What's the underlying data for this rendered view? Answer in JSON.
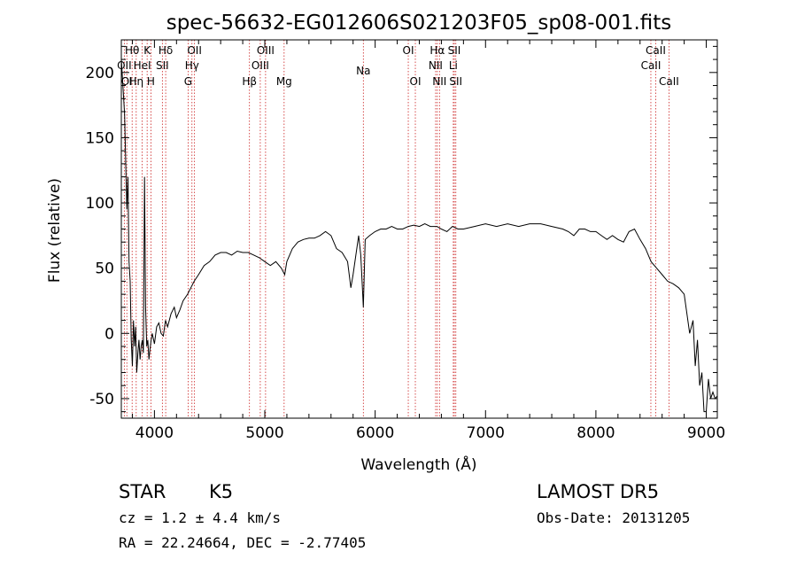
{
  "chart_data": {
    "type": "line",
    "title": "spec-56632-EG012606S021203F05_sp08-001.fits",
    "xlabel": "Wavelength (Å)",
    "ylabel": "Flux (relative)",
    "xlim": [
      3700,
      9100
    ],
    "ylim": [
      -65,
      225
    ],
    "xticks": [
      4000,
      5000,
      6000,
      7000,
      8000,
      9000
    ],
    "yticks": [
      -50,
      0,
      50,
      100,
      150,
      200
    ],
    "grid": false,
    "line_color": "#000000",
    "marker_color": "#cc2222",
    "spectral_lines": [
      {
        "label": "Hθ",
        "x": 3798,
        "row": 0
      },
      {
        "label": "K",
        "x": 3934,
        "row": 0
      },
      {
        "label": "Hδ",
        "x": 4102,
        "row": 0
      },
      {
        "label": "OII",
        "x": 4363,
        "row": 0
      },
      {
        "label": "OIII",
        "x": 5007,
        "row": 0
      },
      {
        "label": "OI",
        "x": 6300,
        "row": 0
      },
      {
        "label": "Hα",
        "x": 6563,
        "row": 0
      },
      {
        "label": "SII",
        "x": 6717,
        "row": 0
      },
      {
        "label": "CaII",
        "x": 8542,
        "row": 0
      },
      {
        "label": "OII",
        "x": 3727,
        "row": 1
      },
      {
        "label": "HeI",
        "x": 3889,
        "row": 1
      },
      {
        "label": "SII",
        "x": 4072,
        "row": 1
      },
      {
        "label": "Hγ",
        "x": 4340,
        "row": 1
      },
      {
        "label": "OIII",
        "x": 4959,
        "row": 1
      },
      {
        "label": "NII",
        "x": 6548,
        "row": 1
      },
      {
        "label": "Li",
        "x": 6708,
        "row": 1
      },
      {
        "label": "CaII",
        "x": 8498,
        "row": 1
      },
      {
        "label": "OI",
        "x": 3750,
        "row": 2
      },
      {
        "label": "Hη",
        "x": 3835,
        "row": 2
      },
      {
        "label": "H",
        "x": 3968,
        "row": 2
      },
      {
        "label": "G",
        "x": 4305,
        "row": 2
      },
      {
        "label": "Hβ",
        "x": 4861,
        "row": 2
      },
      {
        "label": "Mg",
        "x": 5175,
        "row": 2
      },
      {
        "label": "Na",
        "x": 5893,
        "row": 0.65
      },
      {
        "label": "OI",
        "x": 6364,
        "row": 2
      },
      {
        "label": "NII",
        "x": 6583,
        "row": 2
      },
      {
        "label": "SII",
        "x": 6731,
        "row": 2
      },
      {
        "label": "CaII",
        "x": 8662,
        "row": 2
      }
    ],
    "series": [
      {
        "x": [
          3700,
          3730,
          3750,
          3760,
          3770,
          3780,
          3790,
          3800,
          3810,
          3820,
          3830,
          3840,
          3850,
          3860,
          3870,
          3880,
          3890,
          3900,
          3910,
          3920,
          3930,
          3940,
          3950,
          3960,
          3970,
          3980,
          4000,
          4020,
          4040,
          4060,
          4080,
          4100,
          4120,
          4150,
          4180,
          4200,
          4230,
          4260,
          4300,
          4330,
          4360,
          4400,
          4450,
          4500,
          4550,
          4600,
          4650,
          4700,
          4750,
          4800,
          4850,
          4900,
          4950,
          5000,
          5050,
          5100,
          5150,
          5180,
          5200,
          5250,
          5300,
          5350,
          5400,
          5450,
          5500,
          5550,
          5600,
          5650,
          5700,
          5750,
          5780,
          5800,
          5850,
          5870,
          5893,
          5910,
          5950,
          6000,
          6050,
          6100,
          6150,
          6200,
          6250,
          6300,
          6350,
          6400,
          6450,
          6500,
          6560,
          6600,
          6650,
          6700,
          6750,
          6800,
          6900,
          7000,
          7100,
          7200,
          7300,
          7400,
          7500,
          7600,
          7700,
          7750,
          7800,
          7850,
          7900,
          7950,
          8000,
          8050,
          8100,
          8150,
          8200,
          8250,
          8300,
          8350,
          8400,
          8450,
          8500,
          8550,
          8600,
          8650,
          8700,
          8750,
          8800,
          8850,
          8880,
          8900,
          8920,
          8940,
          8960,
          8980,
          9000,
          9020,
          9040,
          9060,
          9080,
          9100
        ],
        "y": [
          210,
          168,
          95,
          120,
          55,
          40,
          -5,
          -25,
          10,
          -10,
          5,
          -30,
          -15,
          -5,
          -20,
          -10,
          -5,
          -15,
          120,
          20,
          -10,
          -5,
          -20,
          -12,
          -5,
          0,
          -8,
          5,
          8,
          0,
          -2,
          10,
          5,
          15,
          20,
          12,
          18,
          25,
          30,
          35,
          40,
          45,
          52,
          55,
          60,
          62,
          62,
          60,
          63,
          62,
          62,
          60,
          58,
          55,
          52,
          55,
          50,
          45,
          55,
          65,
          70,
          72,
          73,
          73,
          75,
          78,
          75,
          65,
          62,
          55,
          35,
          45,
          75,
          60,
          20,
          72,
          75,
          78,
          80,
          80,
          82,
          80,
          80,
          82,
          83,
          82,
          84,
          82,
          82,
          80,
          78,
          82,
          80,
          80,
          82,
          84,
          82,
          84,
          82,
          84,
          84,
          82,
          80,
          78,
          75,
          80,
          80,
          78,
          78,
          75,
          72,
          75,
          72,
          70,
          78,
          80,
          72,
          65,
          55,
          50,
          45,
          40,
          38,
          35,
          30,
          0,
          10,
          -25,
          -5,
          -40,
          -30,
          -60,
          -60,
          -35,
          -50,
          -45,
          -50,
          -48
        ]
      }
    ]
  },
  "footer": {
    "object_type": "STAR",
    "subclass": "K5",
    "survey": "LAMOST DR5",
    "redshift": "cz = 1.2 ± 4.4 km/s",
    "obs_date": "Obs-Date: 20131205",
    "coords": "RA =  22.24664, DEC =  -2.77405"
  }
}
